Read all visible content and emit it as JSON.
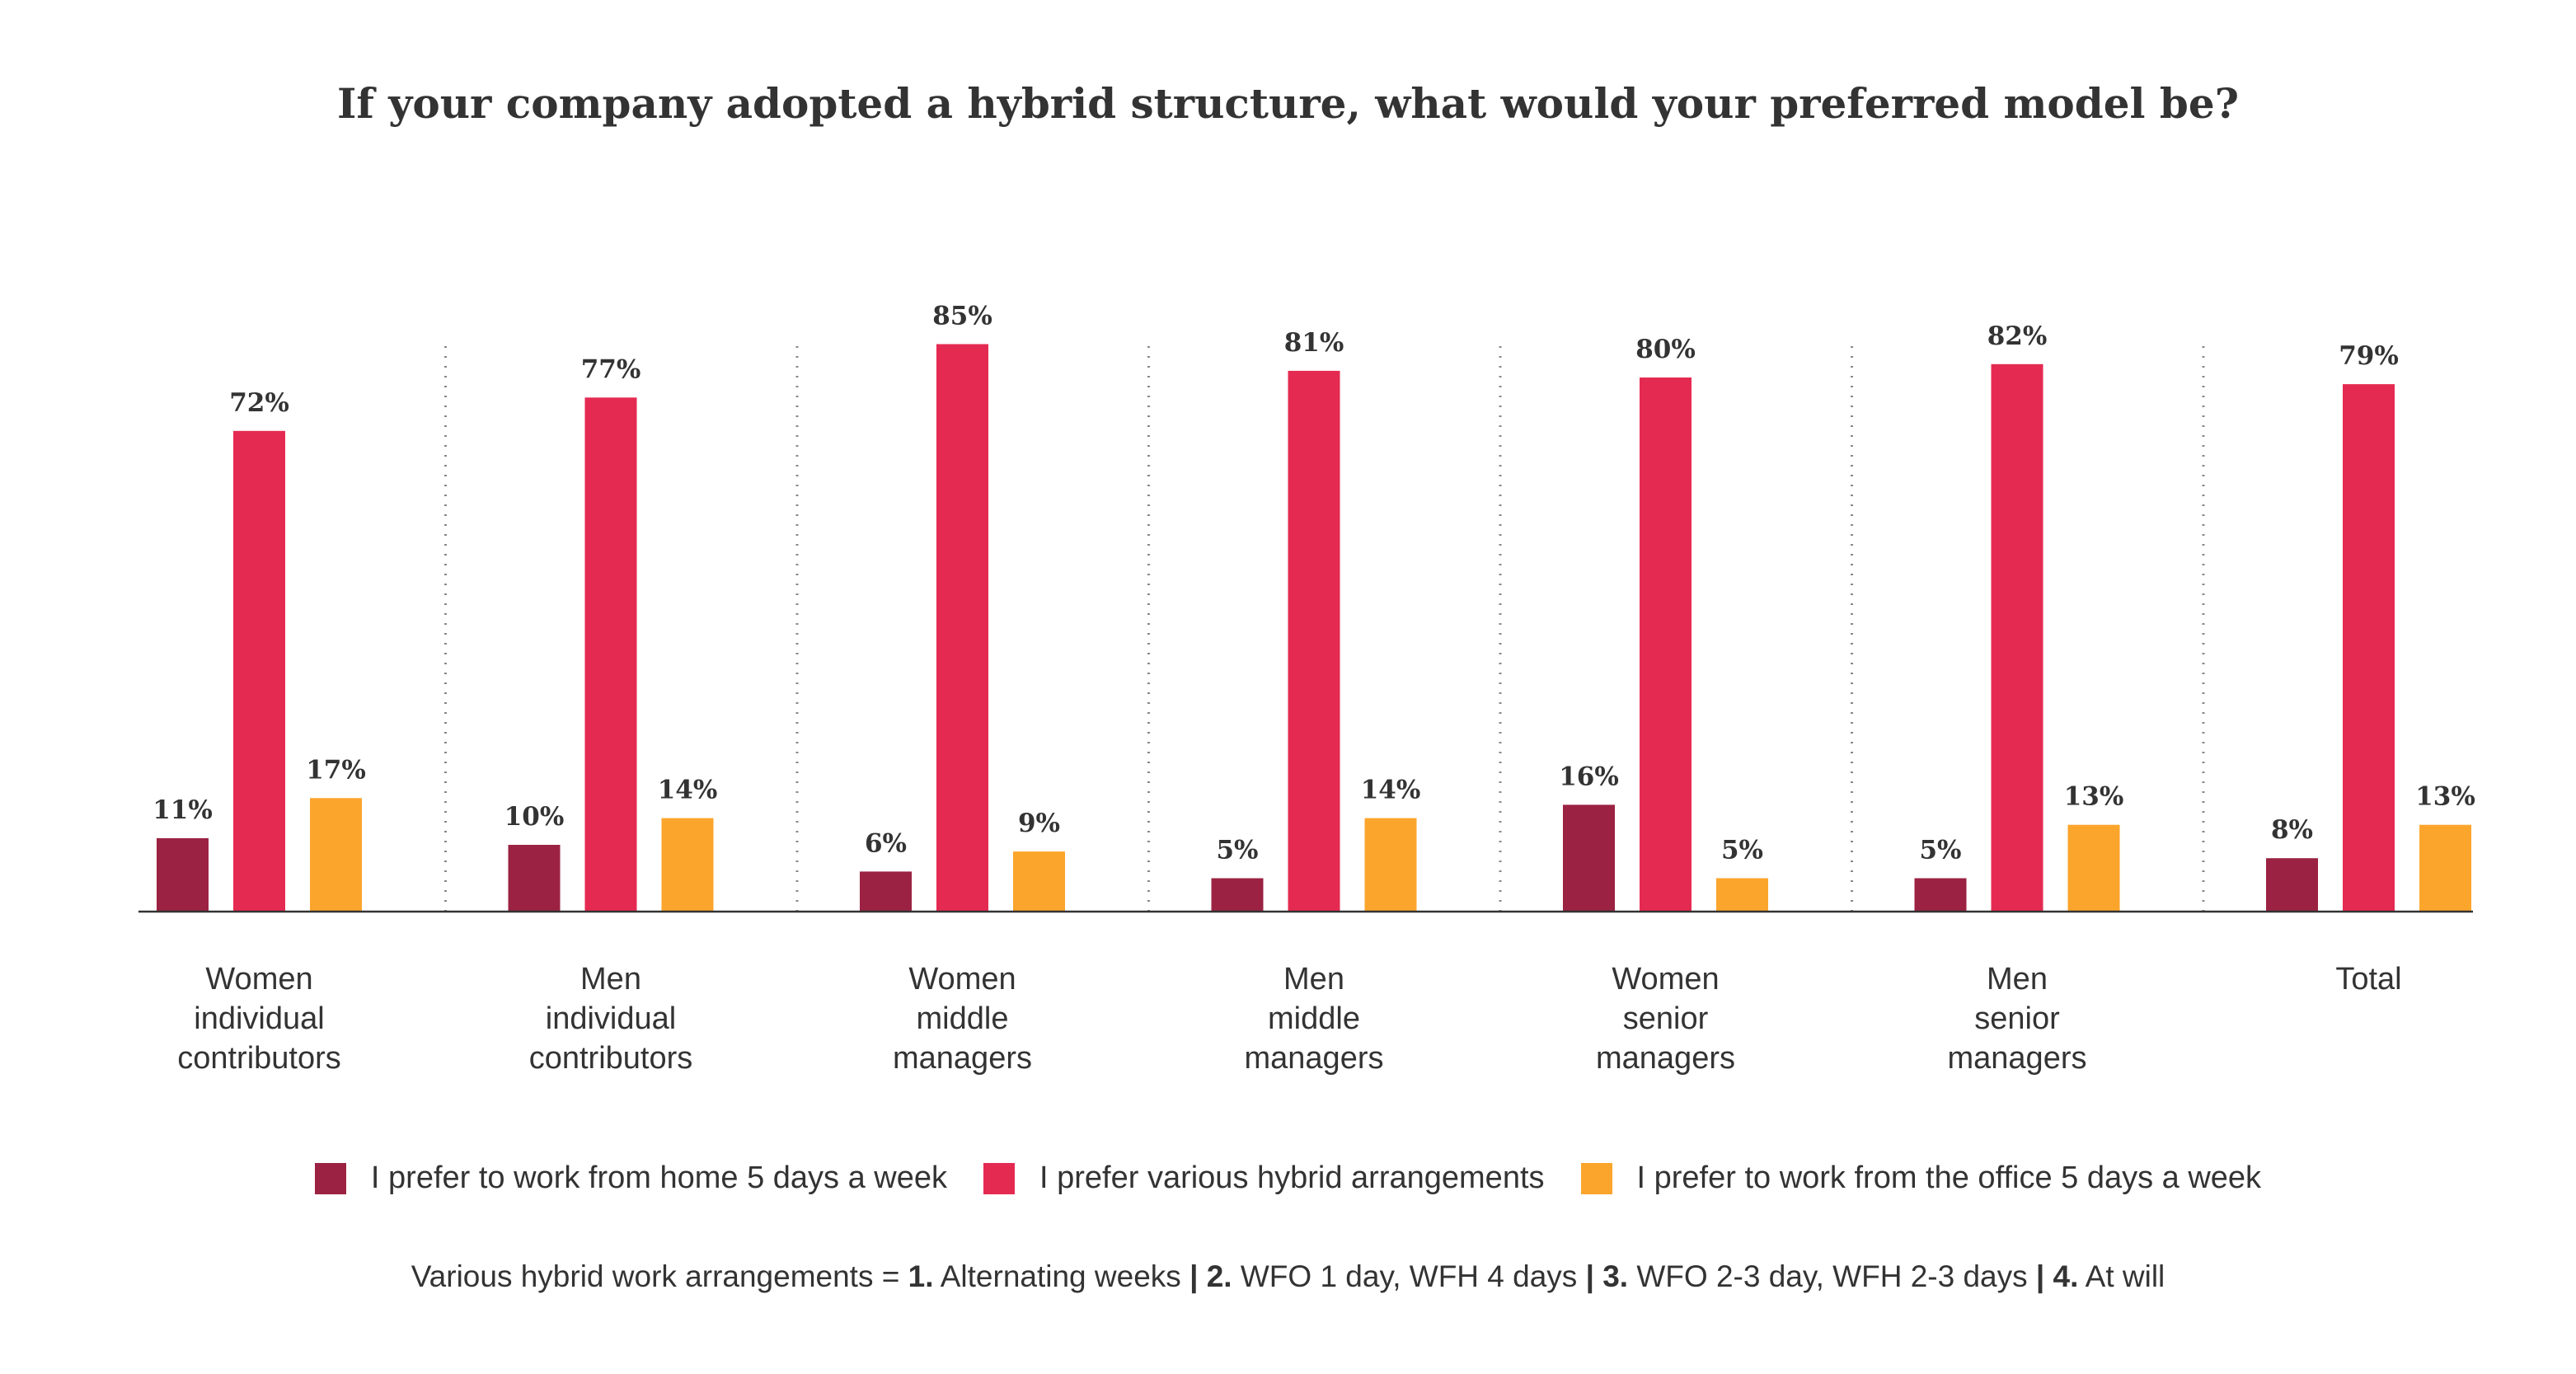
{
  "chart_data": {
    "type": "bar",
    "title": "If your company adopted a hybrid structure, what would your preferred model be?",
    "categories": [
      [
        "Women",
        "individual",
        "contributors"
      ],
      [
        "Men",
        "individual",
        "contributors"
      ],
      [
        "Women",
        "middle",
        "managers"
      ],
      [
        "Men",
        "middle",
        "managers"
      ],
      [
        "Women",
        "senior",
        "managers"
      ],
      [
        "Men",
        "senior",
        "managers"
      ],
      [
        "Total"
      ]
    ],
    "series": [
      {
        "name": "I prefer to work from home 5 days a week",
        "color": "#9B2242",
        "values": [
          11,
          10,
          6,
          5,
          16,
          5,
          8
        ]
      },
      {
        "name": "I prefer various hybrid arrangements",
        "color": "#E52A52",
        "values": [
          72,
          77,
          85,
          81,
          80,
          82,
          79
        ]
      },
      {
        "name": "I prefer to work from the office 5 days a week",
        "color": "#FCA52C",
        "values": [
          17,
          14,
          9,
          14,
          5,
          13,
          13
        ]
      }
    ],
    "value_suffix": "%",
    "ylim": [
      0,
      85
    ],
    "grid": false,
    "legend_placement": "bottom"
  },
  "footnote": {
    "prefix": "Various hybrid work arrangements = ",
    "items": [
      {
        "num": "1.",
        "text": " Alternating weeks"
      },
      {
        "num": "2.",
        "text": " WFO 1 day, WFH 4 days"
      },
      {
        "num": "3.",
        "text": " WFO 2-3 day, WFH 2-3 days"
      },
      {
        "num": "4.",
        "text": " At will"
      }
    ],
    "separator": " | "
  }
}
